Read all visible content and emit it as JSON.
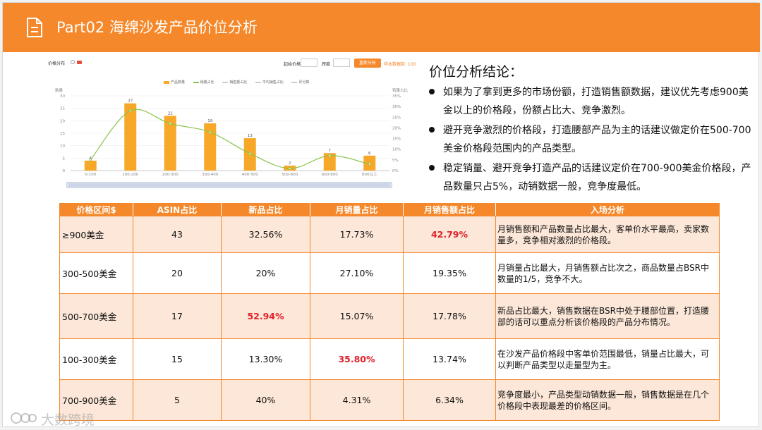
{
  "header": {
    "title": "Part02 海绵沙发产品价位分析"
  },
  "toolbar": {
    "title": "价格分布",
    "start_price_label": "起始价格",
    "step_label": "跨度",
    "redraw_button": "重新分析",
    "note": "样本数据前: 100"
  },
  "legend": {
    "items": [
      {
        "label": "产品数量",
        "color": "#f7a828"
      },
      {
        "label": "销量占比",
        "color": "#8bc34a"
      },
      {
        "label": "销售额占比",
        "color": "#cccccc"
      },
      {
        "label": "平均销售占比",
        "color": "#cccccc"
      },
      {
        "label": "评分数",
        "color": "#cccccc"
      }
    ]
  },
  "chart_data": {
    "type": "bar",
    "title": "价格分布",
    "categories": [
      "0-100",
      "100-200",
      "200-300",
      "300-400",
      "400-500",
      "500-600",
      "600-800",
      "800以上"
    ],
    "series": [
      {
        "name": "产品数量",
        "type": "bar",
        "axis": "left",
        "values": [
          4,
          27,
          22,
          19,
          13,
          2,
          7,
          6
        ],
        "color": "#f7a828"
      },
      {
        "name": "销量占比",
        "type": "line",
        "axis": "right",
        "values": [
          5,
          28,
          22,
          18,
          8,
          1,
          7,
          3
        ],
        "color": "#8bc34a"
      }
    ],
    "ylabel": "数量",
    "y2label": "销量占比",
    "ylim": [
      0,
      30
    ],
    "y2lim": [
      0,
      35
    ],
    "yticks": [
      0,
      5,
      10,
      15,
      20,
      25,
      30
    ],
    "y2ticks": [
      "0%",
      "5%",
      "10%",
      "15%",
      "20%",
      "25%",
      "30%",
      "35%"
    ],
    "grid": true
  },
  "conclusion": {
    "title": "价位分析结论：",
    "bullets": [
      "如果为了拿到更多的市场份额，打造销售额数据，建议优先考虑900美金以上的价格段，份额占比大、竞争激烈。",
      "避开竞争激烈的价格段，打造腰部产品为主的话建议做定价在500-700美金价格段范围内的产品类型。",
      "稳定销量、避开竞争打造产品的话建议定价在700-900美金价格段，产品数量只占5%，动销数据一般，竞争度最低。"
    ]
  },
  "table": {
    "headers": [
      "价格区间$",
      "ASIN占比",
      "新品占比",
      "月销量占比",
      "月销售额占比",
      "入场分析"
    ],
    "rows": [
      [
        "≥900美金",
        "43",
        "32.56%",
        "17.73%",
        "42.79%",
        "月销售额和产品数量占比最大，客单价水平最高，卖家数量多，竞争相对激烈的价格段。"
      ],
      [
        "300-500美金",
        "20",
        "20%",
        "27.10%",
        "19.35%",
        "月销量占比最大，月销售额占比次之，商品数量占BSR中数量的1/5，竞争不大。"
      ],
      [
        "500-700美金",
        "17",
        "52.94%",
        "15.07%",
        "17.78%",
        "新品占比最大，销售数据在BSR中处于腰部位置，打造腰部的话可以重点分析该价格段的产品分布情况。"
      ],
      [
        "100-300美金",
        "15",
        "13.30%",
        "35.80%",
        "13.74%",
        "在沙发产品价格段中客单价范围最低，销量占比最大，可以判断产品类型以走量型为主。"
      ],
      [
        "700-900美金",
        "5",
        "40%",
        "4.31%",
        "6.34%",
        "竞争度最小，产品类型动销数据一般，销售数据是在几个价格段中表现最差的价格区间。"
      ]
    ],
    "highlights": [
      [
        0,
        4
      ],
      [
        2,
        2
      ],
      [
        3,
        3
      ]
    ]
  },
  "watermark": {
    "text": "大数跨境"
  }
}
